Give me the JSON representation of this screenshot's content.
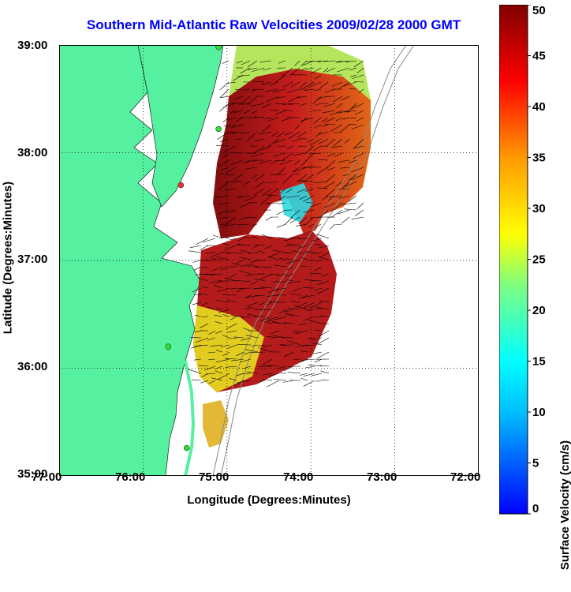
{
  "title": "Southern Mid-Atlantic Raw Velocities 2009/02/28 2000 GMT",
  "x_axis": {
    "label": "Longitude (Degrees:Minutes)",
    "ticks": [
      "77:00",
      "76:00",
      "75:00",
      "74:00",
      "73:00",
      "72:00"
    ]
  },
  "y_axis": {
    "label": "Latitude (Degrees:Minutes)",
    "ticks": [
      "39:00",
      "38:00",
      "37:00",
      "36:00",
      "35:00"
    ]
  },
  "colorbar": {
    "label": "Surface Velocity (cm/s)",
    "ticks": [
      "50",
      "45",
      "40",
      "35",
      "30",
      "25",
      "20",
      "15",
      "10",
      "5",
      "0"
    ],
    "range": [
      0,
      50
    ]
  },
  "colors": {
    "land": "#55f0a0",
    "water": "#ffffff",
    "title": "#0000ff",
    "station_green": "#33dd33",
    "station_red": "#ee3333"
  },
  "chart_data": {
    "type": "map",
    "xlim": [
      -77,
      -72
    ],
    "ylim": [
      35,
      39
    ],
    "grid": true,
    "stations": [
      {
        "lon": -75.1,
        "lat": 38.98,
        "color": "green"
      },
      {
        "lon": -75.1,
        "lat": 38.22,
        "color": "green"
      },
      {
        "lon": -75.55,
        "lat": 37.7,
        "color": "red"
      },
      {
        "lon": -75.7,
        "lat": 36.2,
        "color": "green"
      },
      {
        "lon": -75.48,
        "lat": 35.26,
        "color": "green"
      }
    ]
  }
}
